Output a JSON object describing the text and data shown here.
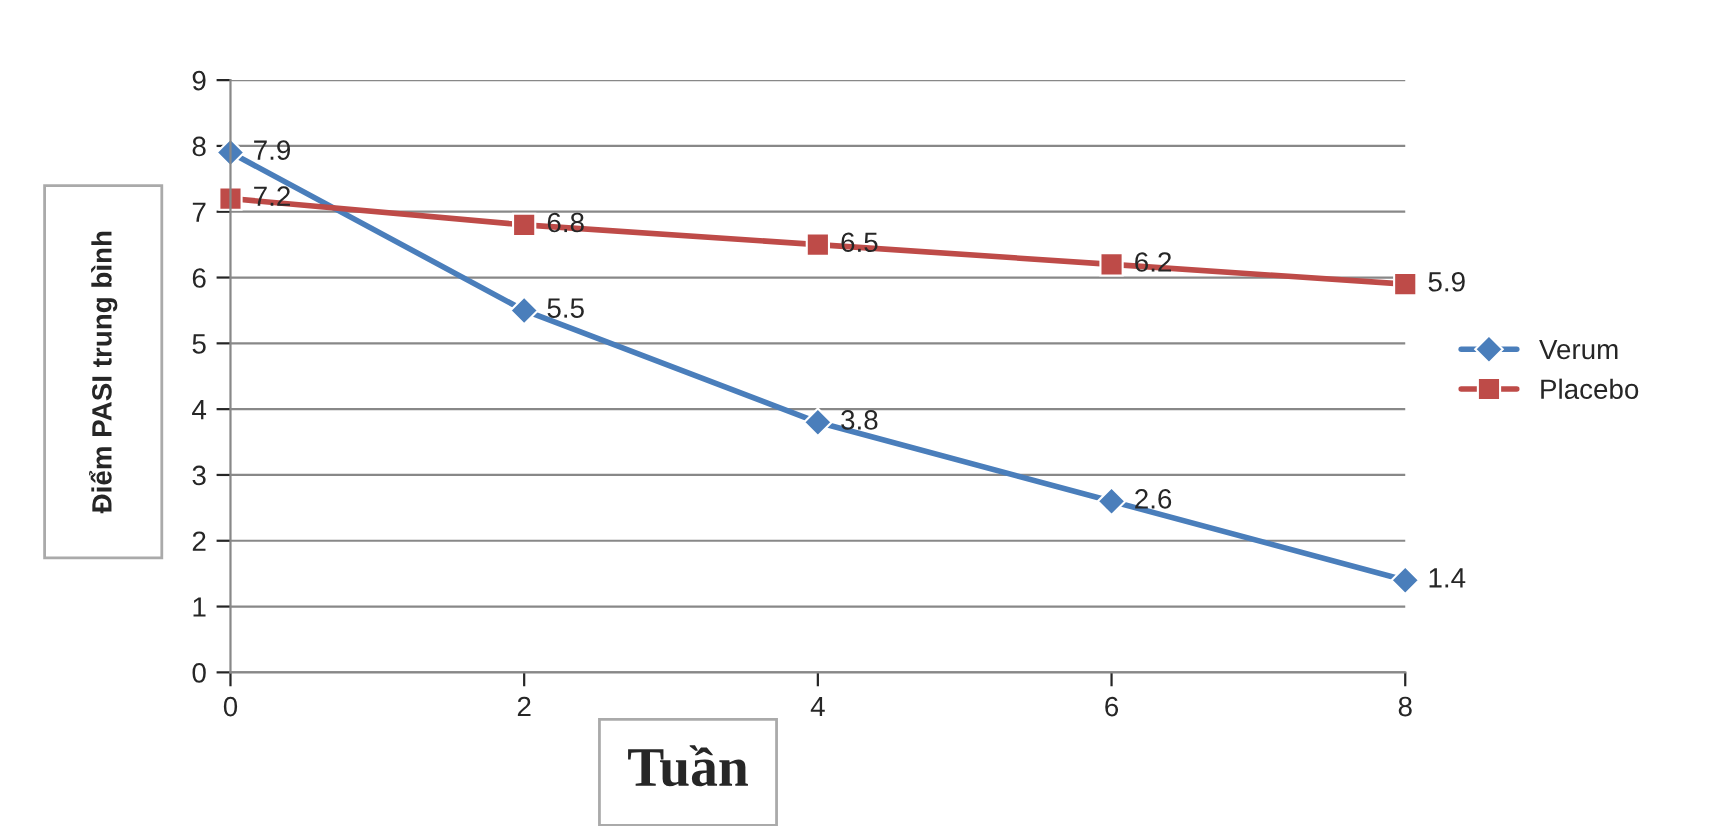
{
  "chart_data": {
    "type": "line",
    "xlabel": "Tuần",
    "ylabel": "Điểm PASI trung bình",
    "x": [
      0,
      2,
      4,
      6,
      8
    ],
    "series": [
      {
        "name": "Verum",
        "color": "#4a7ebb",
        "marker": "diamond",
        "values": [
          7.9,
          5.5,
          3.8,
          2.6,
          1.4
        ]
      },
      {
        "name": "Placebo",
        "color": "#be4b48",
        "marker": "square",
        "values": [
          7.2,
          6.8,
          6.5,
          6.2,
          5.9
        ]
      }
    ],
    "xlim": [
      0,
      8
    ],
    "xticks": [
      0,
      2,
      4,
      6,
      8
    ],
    "ylim": [
      0,
      9
    ],
    "yticks": [
      0,
      1,
      2,
      3,
      4,
      5,
      6,
      7,
      8,
      9
    ],
    "grid": "y",
    "legend": "right",
    "data_labels": true,
    "line_style": "solid"
  }
}
